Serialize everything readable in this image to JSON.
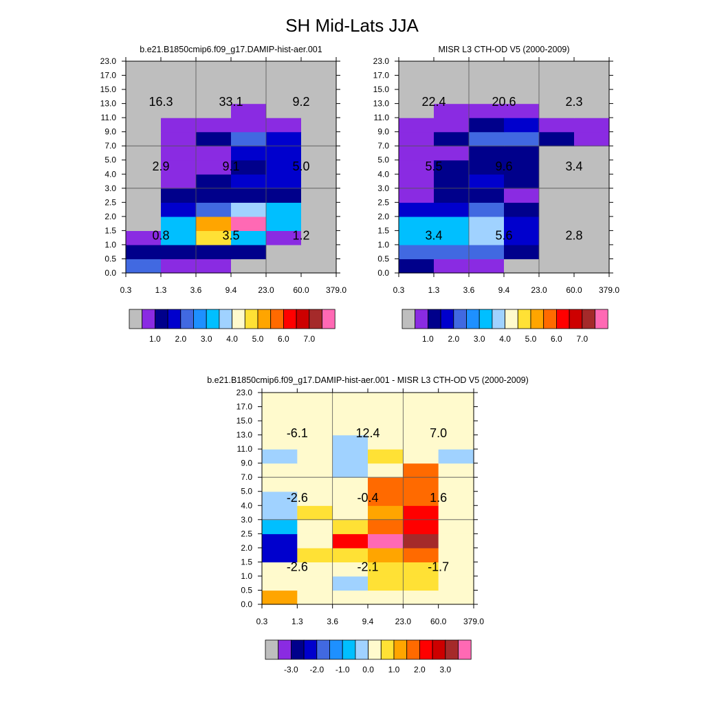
{
  "title": "SH Mid-Lats JJA",
  "chart_data": [
    {
      "type": "heatmap",
      "title": "b.e21.B1850cmip6.f09_g17.DAMIP-hist-aer.001",
      "x_tick_labels": [
        "0.3",
        "1.3",
        "3.6",
        "9.4",
        "23.0",
        "60.0",
        "379.0"
      ],
      "y_tick_labels": [
        "0.0",
        "0.5",
        "1.0",
        "1.5",
        "2.0",
        "2.5",
        "3.0",
        "4.0",
        "5.0",
        "7.0",
        "9.0",
        "11.0",
        "13.0",
        "15.0",
        "17.0",
        "23.0"
      ],
      "colorbar_labels": [
        "1.0",
        "2.0",
        "3.0",
        "4.0",
        "5.0",
        "6.0",
        "7.0"
      ],
      "bin_labels": [
        [
          "0.8",
          "3.5",
          "1.2"
        ],
        [
          "2.9",
          "9.1",
          "5.0"
        ],
        [
          "16.3",
          "33.1",
          "9.2"
        ]
      ],
      "cells_color_index": [
        [
          4,
          1,
          1,
          0,
          0,
          0
        ],
        [
          2,
          2,
          2,
          2,
          0,
          0
        ],
        [
          1,
          6,
          9,
          6,
          1,
          0
        ],
        [
          0,
          6,
          10,
          15,
          6,
          0
        ],
        [
          0,
          3,
          4,
          7,
          6,
          0
        ],
        [
          0,
          2,
          2,
          2,
          2,
          0
        ],
        [
          0,
          1,
          2,
          3,
          3,
          0
        ],
        [
          0,
          1,
          1,
          2,
          3,
          0
        ],
        [
          0,
          1,
          1,
          3,
          3,
          0
        ],
        [
          0,
          1,
          2,
          4,
          3,
          0
        ],
        [
          0,
          1,
          1,
          1,
          1,
          0
        ],
        [
          0,
          0,
          0,
          1,
          0,
          0
        ],
        [
          0,
          0,
          0,
          0,
          0,
          0
        ],
        [
          0,
          0,
          0,
          0,
          0,
          0
        ],
        [
          0,
          0,
          0,
          0,
          0,
          0
        ]
      ]
    },
    {
      "type": "heatmap",
      "title": "MISR L3 CTH-OD V5 (2000-2009)",
      "x_tick_labels": [
        "0.3",
        "1.3",
        "3.6",
        "9.4",
        "23.0",
        "60.0",
        "379.0"
      ],
      "y_tick_labels": [
        "0.0",
        "0.5",
        "1.0",
        "1.5",
        "2.0",
        "2.5",
        "3.0",
        "4.0",
        "5.0",
        "7.0",
        "9.0",
        "11.0",
        "13.0",
        "15.0",
        "17.0",
        "23.0"
      ],
      "colorbar_labels": [
        "1.0",
        "2.0",
        "3.0",
        "4.0",
        "5.0",
        "6.0",
        "7.0"
      ],
      "bin_labels": [
        [
          "3.4",
          "5.6",
          "2.8"
        ],
        [
          "5.5",
          "9.6",
          "3.4"
        ],
        [
          "22.4",
          "20.6",
          "2.3"
        ]
      ],
      "cells_color_index": [
        [
          2,
          1,
          1,
          0,
          0,
          0
        ],
        [
          4,
          4,
          4,
          2,
          0,
          0
        ],
        [
          6,
          6,
          7,
          3,
          0,
          0
        ],
        [
          6,
          6,
          7,
          3,
          0,
          0
        ],
        [
          3,
          3,
          4,
          2,
          0,
          0
        ],
        [
          1,
          2,
          2,
          1,
          0,
          0
        ],
        [
          1,
          2,
          3,
          2,
          0,
          0
        ],
        [
          1,
          2,
          2,
          2,
          0,
          0
        ],
        [
          1,
          1,
          2,
          2,
          0,
          0
        ],
        [
          1,
          2,
          4,
          4,
          2,
          1
        ],
        [
          1,
          1,
          2,
          3,
          1,
          1
        ],
        [
          0,
          1,
          1,
          1,
          0,
          0
        ],
        [
          0,
          0,
          0,
          0,
          0,
          0
        ],
        [
          0,
          0,
          0,
          0,
          0,
          0
        ],
        [
          0,
          0,
          0,
          0,
          0,
          0
        ]
      ]
    },
    {
      "type": "heatmap",
      "title": "b.e21.B1850cmip6.f09_g17.DAMIP-hist-aer.001 - MISR L3 CTH-OD V5 (2000-2009)",
      "x_tick_labels": [
        "0.3",
        "1.3",
        "3.6",
        "9.4",
        "23.0",
        "60.0",
        "379.0"
      ],
      "y_tick_labels": [
        "0.0",
        "0.5",
        "1.0",
        "1.5",
        "2.0",
        "2.5",
        "3.0",
        "4.0",
        "5.0",
        "7.0",
        "9.0",
        "11.0",
        "13.0",
        "15.0",
        "17.0",
        "23.0"
      ],
      "colorbar_labels": [
        "-3.0",
        "-2.0",
        "-1.0",
        "0.0",
        "1.0",
        "2.0",
        "3.0"
      ],
      "bin_labels": [
        [
          "-2.6",
          "-2.1",
          "-1.7"
        ],
        [
          "-2.6",
          "-0.4",
          "1.6"
        ],
        [
          "-6.1",
          "12.4",
          "7.0"
        ]
      ],
      "cells_color_index": [
        [
          10,
          8,
          8,
          8,
          8,
          8
        ],
        [
          8,
          8,
          7,
          9,
          9,
          8
        ],
        [
          8,
          8,
          8,
          9,
          9,
          8
        ],
        [
          3,
          9,
          9,
          10,
          11,
          8
        ],
        [
          3,
          8,
          12,
          15,
          14,
          8
        ],
        [
          6,
          8,
          9,
          11,
          12,
          8
        ],
        [
          7,
          9,
          8,
          10,
          12,
          8
        ],
        [
          7,
          8,
          8,
          11,
          11,
          8
        ],
        [
          8,
          8,
          8,
          11,
          11,
          8
        ],
        [
          8,
          8,
          7,
          8,
          11,
          8
        ],
        [
          7,
          8,
          7,
          9,
          8,
          7
        ],
        [
          8,
          8,
          7,
          8,
          8,
          8
        ],
        [
          8,
          8,
          8,
          8,
          8,
          8
        ],
        [
          8,
          8,
          8,
          8,
          8,
          8
        ],
        [
          8,
          8,
          8,
          8,
          8,
          8
        ]
      ]
    }
  ],
  "colors": {
    "palette": [
      "#bebebe",
      "#8a2be2",
      "#00008b",
      "#0000cd",
      "#4169e1",
      "#1e90ff",
      "#00bfff",
      "#a0d2ff",
      "#fffacd",
      "#ffe135",
      "#ffa500",
      "#ff6a00",
      "#ff0000",
      "#cd0000",
      "#a52a2a",
      "#ff69b4"
    ],
    "grid": "#555555",
    "axis": "#000000"
  }
}
